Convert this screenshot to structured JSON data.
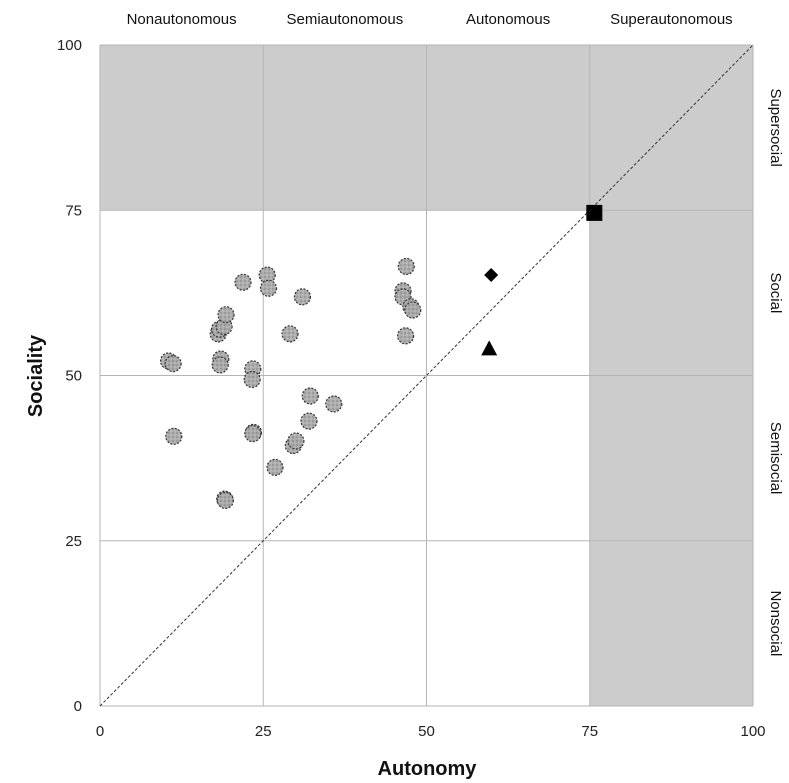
{
  "chart_data": {
    "type": "scatter",
    "xlabel": "Autonomy",
    "ylabel": "Sociality",
    "xlim": [
      0,
      100
    ],
    "ylim": [
      0,
      100
    ],
    "x_ticks": [
      "0",
      "25",
      "50",
      "75",
      "100"
    ],
    "y_ticks": [
      "0",
      "25",
      "50",
      "75",
      "100"
    ],
    "grid": true,
    "column_bands": [
      "Nonautonomous",
      "Semiautonomous",
      "Autonomous",
      "Superautonomous"
    ],
    "row_bands": [
      "Nonsocial",
      "Semisocial",
      "Social",
      "Supersocial"
    ],
    "shaded_regions": [
      {
        "x": [
          0,
          100
        ],
        "y": [
          75,
          100
        ]
      },
      {
        "x": [
          75,
          100
        ],
        "y": [
          0,
          75
        ]
      }
    ],
    "diagonal": {
      "from": [
        0,
        0
      ],
      "to": [
        100,
        100
      ],
      "style": "dashed"
    },
    "series": [
      {
        "marker": "circle",
        "points": [
          [
            10.5,
            52.2
          ],
          [
            11.2,
            51.8
          ],
          [
            11.3,
            40.8
          ],
          [
            18.1,
            56.3
          ],
          [
            18.3,
            57.0
          ],
          [
            18.5,
            52.5
          ],
          [
            18.4,
            51.6
          ],
          [
            19.0,
            57.4
          ],
          [
            19.3,
            59.2
          ],
          [
            19.1,
            31.3
          ],
          [
            19.2,
            31.1
          ],
          [
            21.9,
            64.1
          ],
          [
            23.4,
            51.0
          ],
          [
            23.3,
            49.4
          ],
          [
            23.5,
            41.4
          ],
          [
            23.4,
            41.2
          ],
          [
            25.6,
            65.2
          ],
          [
            25.8,
            63.2
          ],
          [
            26.8,
            36.1
          ],
          [
            29.1,
            56.3
          ],
          [
            29.6,
            39.4
          ],
          [
            30.0,
            40.1
          ],
          [
            31.0,
            61.9
          ],
          [
            32.2,
            46.9
          ],
          [
            32.0,
            43.1
          ],
          [
            35.8,
            45.7
          ],
          [
            46.4,
            62.8
          ],
          [
            46.4,
            61.9
          ],
          [
            46.9,
            66.5
          ],
          [
            46.8,
            56.0
          ],
          [
            47.6,
            60.4
          ],
          [
            47.9,
            59.9
          ]
        ]
      },
      {
        "marker": "diamond",
        "points": [
          [
            59.9,
            65.2
          ]
        ]
      },
      {
        "marker": "triangle",
        "points": [
          [
            59.6,
            54.1
          ]
        ]
      },
      {
        "marker": "square",
        "points": [
          [
            75.7,
            74.6
          ]
        ]
      }
    ]
  }
}
